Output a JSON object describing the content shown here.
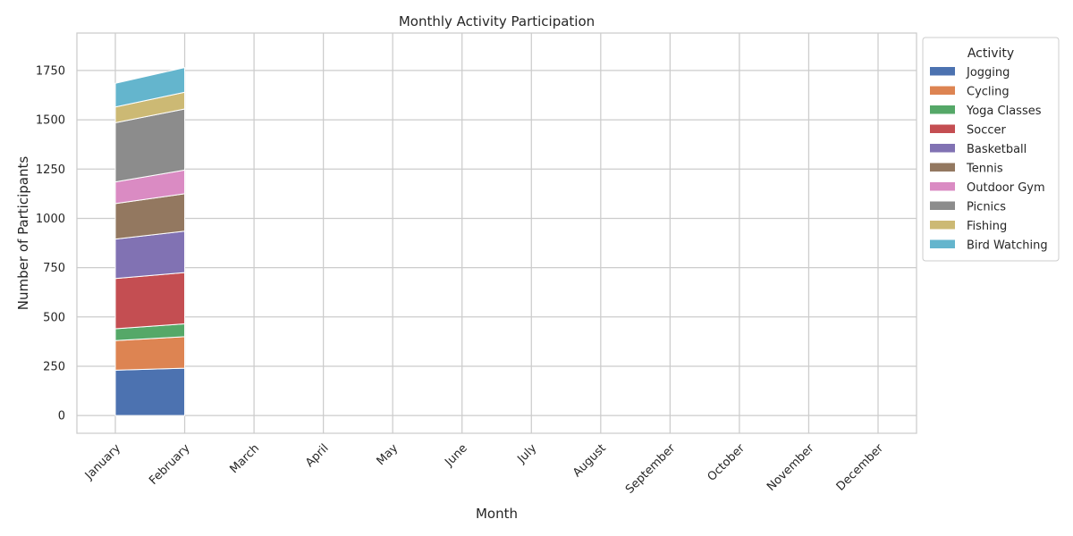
{
  "chart_data": {
    "type": "area",
    "stacked": true,
    "title": "Monthly Activity Participation",
    "xlabel": "Month",
    "ylabel": "Number of Participants",
    "categories": [
      "January",
      "February",
      "March",
      "April",
      "May",
      "June",
      "July",
      "August",
      "September",
      "October",
      "November",
      "December"
    ],
    "ylim": [
      -90,
      1940
    ],
    "yticks": [
      0,
      250,
      500,
      750,
      1000,
      1250,
      1500,
      1750
    ],
    "grid": true,
    "legend": {
      "title": "Activity",
      "placement": "outside-top-right"
    },
    "series": [
      {
        "name": "Jogging",
        "color": "#4c72b0",
        "values": [
          230,
          240,
          null,
          null,
          null,
          null,
          null,
          null,
          null,
          null,
          null,
          null
        ]
      },
      {
        "name": "Cycling",
        "color": "#dd8452",
        "values": [
          150,
          160,
          null,
          null,
          null,
          null,
          null,
          null,
          null,
          null,
          null,
          null
        ]
      },
      {
        "name": "Yoga Classes",
        "color": "#55a868",
        "values": [
          60,
          65,
          null,
          null,
          null,
          null,
          null,
          null,
          null,
          null,
          null,
          null
        ]
      },
      {
        "name": "Soccer",
        "color": "#c44e52",
        "values": [
          255,
          260,
          null,
          null,
          null,
          null,
          null,
          null,
          null,
          null,
          null,
          null
        ]
      },
      {
        "name": "Basketball",
        "color": "#8172b3",
        "values": [
          200,
          210,
          null,
          null,
          null,
          null,
          null,
          null,
          null,
          null,
          null,
          null
        ]
      },
      {
        "name": "Tennis",
        "color": "#937860",
        "values": [
          180,
          190,
          null,
          null,
          null,
          null,
          null,
          null,
          null,
          null,
          null,
          null
        ]
      },
      {
        "name": "Outdoor Gym",
        "color": "#da8bc3",
        "values": [
          110,
          120,
          null,
          null,
          null,
          null,
          null,
          null,
          null,
          null,
          null,
          null
        ]
      },
      {
        "name": "Picnics",
        "color": "#8c8c8c",
        "values": [
          300,
          310,
          null,
          null,
          null,
          null,
          null,
          null,
          null,
          null,
          null,
          null
        ]
      },
      {
        "name": "Fishing",
        "color": "#ccb974",
        "values": [
          80,
          85,
          null,
          null,
          null,
          null,
          null,
          null,
          null,
          null,
          null,
          null
        ]
      },
      {
        "name": "Bird Watching",
        "color": "#64b5cd",
        "values": [
          120,
          125,
          null,
          null,
          null,
          null,
          null,
          null,
          null,
          null,
          null,
          null
        ]
      }
    ]
  }
}
